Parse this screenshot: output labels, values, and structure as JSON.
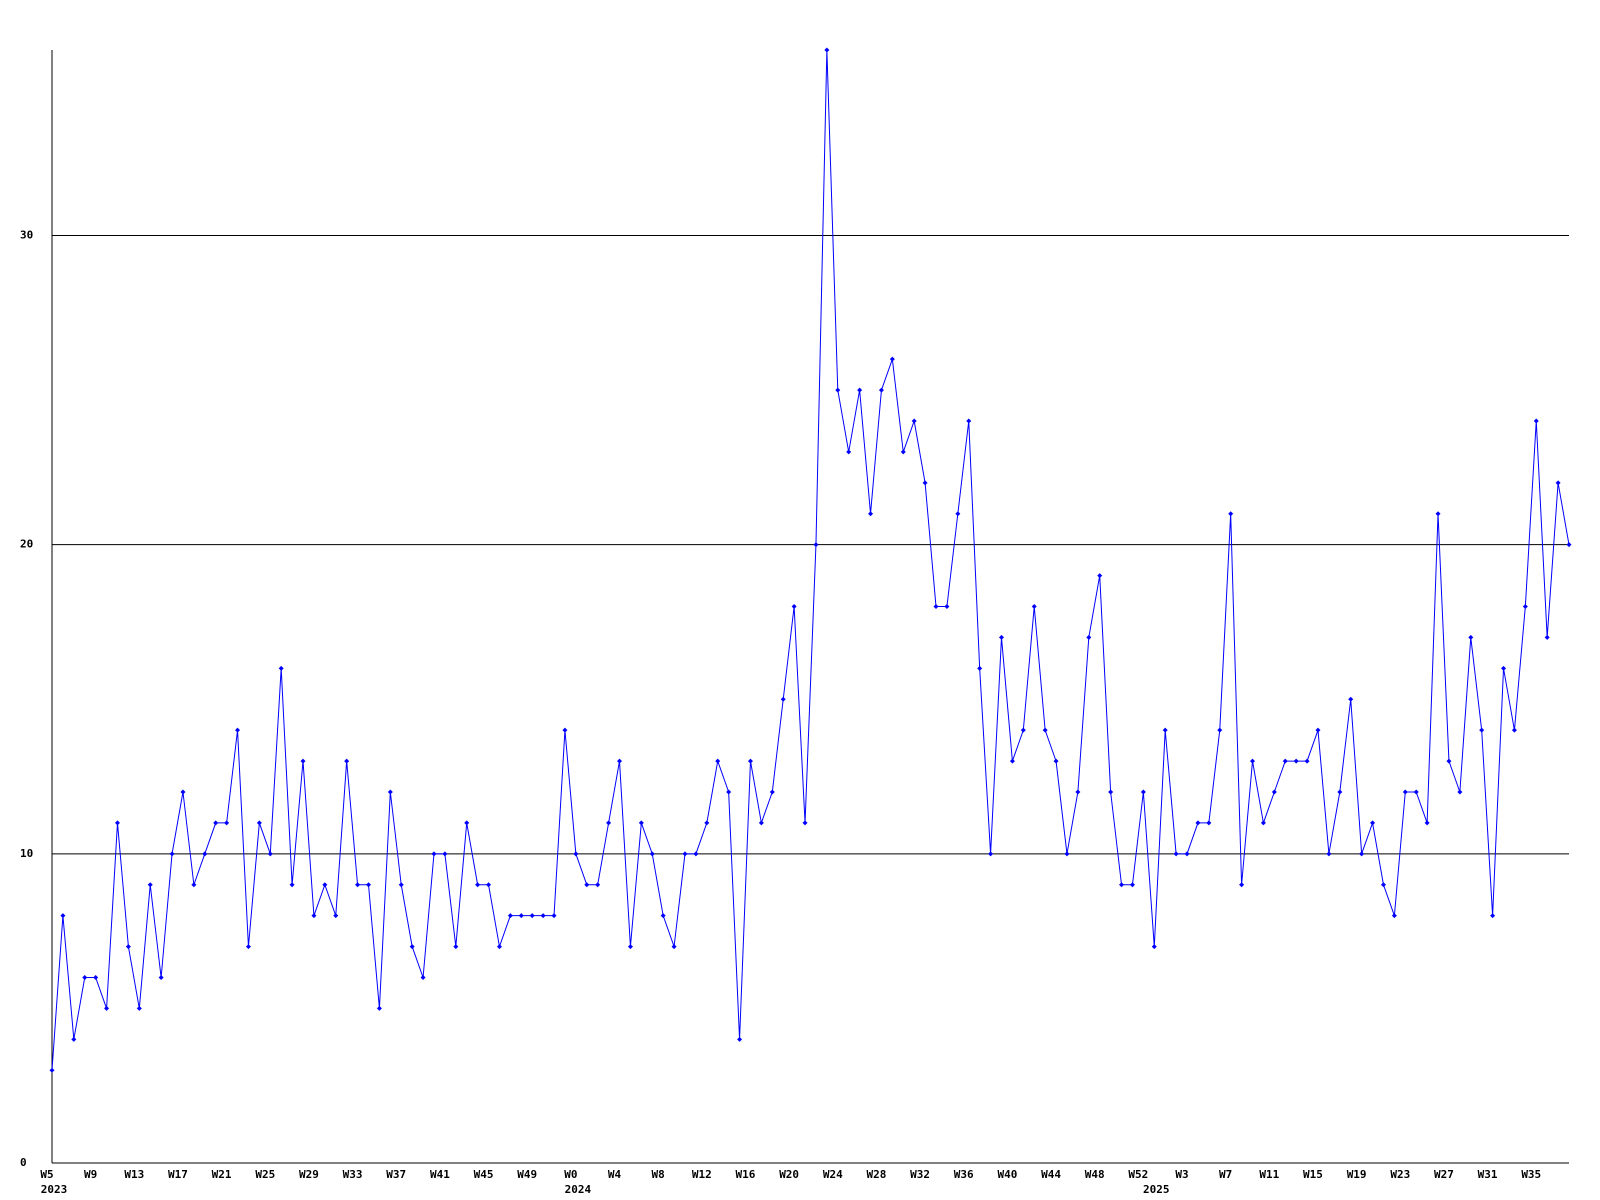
{
  "chart_data": {
    "type": "line",
    "categories": [
      "W5",
      null,
      null,
      null,
      "W9",
      null,
      null,
      null,
      "W13",
      null,
      null,
      null,
      "W17",
      null,
      null,
      null,
      "W21",
      null,
      null,
      null,
      "W25",
      null,
      null,
      null,
      "W29",
      null,
      null,
      null,
      "W33",
      null,
      null,
      null,
      "W37",
      null,
      null,
      null,
      "W41",
      null,
      null,
      null,
      "W45",
      null,
      null,
      null,
      "W49",
      null,
      null,
      null,
      "W0",
      null,
      null,
      null,
      "W4",
      null,
      null,
      null,
      "W8",
      null,
      null,
      null,
      "W12",
      null,
      null,
      null,
      "W16",
      null,
      null,
      null,
      "W20",
      null,
      null,
      null,
      "W24",
      null,
      null,
      null,
      "W28",
      null,
      null,
      null,
      "W32",
      null,
      null,
      null,
      "W36",
      null,
      null,
      null,
      "W40",
      null,
      null,
      null,
      "W44",
      null,
      null,
      null,
      "W48",
      null,
      null,
      null,
      "W52",
      null,
      null,
      null,
      "W3",
      null,
      null,
      null,
      "W7",
      null,
      null,
      null,
      "W11",
      null,
      null,
      null,
      "W15",
      null,
      null,
      null,
      "W19",
      null,
      null,
      null,
      "W23",
      null,
      null,
      null,
      "W27",
      null,
      null,
      null,
      "W31",
      null,
      null,
      null,
      "W35",
      null,
      null,
      null
    ],
    "year_labels": [
      "2023",
      null,
      null,
      null,
      null,
      null,
      null,
      null,
      null,
      null,
      null,
      null,
      null,
      null,
      null,
      null,
      null,
      null,
      null,
      null,
      null,
      null,
      null,
      null,
      null,
      null,
      null,
      null,
      null,
      null,
      null,
      null,
      null,
      null,
      null,
      null,
      null,
      null,
      null,
      null,
      null,
      null,
      null,
      null,
      null,
      null,
      null,
      null,
      "2024",
      null,
      null,
      null,
      null,
      null,
      null,
      null,
      null,
      null,
      null,
      null,
      null,
      null,
      null,
      null,
      null,
      null,
      null,
      null,
      null,
      null,
      null,
      null,
      null,
      null,
      null,
      null,
      null,
      null,
      null,
      null,
      null,
      null,
      null,
      null,
      null,
      null,
      null,
      null,
      null,
      null,
      null,
      null,
      null,
      null,
      null,
      null,
      null,
      null,
      null,
      null,
      null,
      "2025",
      null,
      null,
      null,
      null,
      null,
      null,
      null,
      null,
      null,
      null,
      null,
      null,
      null,
      null,
      null,
      null,
      null,
      null,
      null,
      null,
      null,
      null,
      null,
      null,
      null,
      null,
      null,
      null,
      null,
      null,
      null,
      null,
      null,
      null,
      null,
      null,
      null,
      null
    ],
    "values": [
      3,
      8,
      4,
      6,
      6,
      5,
      11,
      7,
      5,
      9,
      6,
      10,
      12,
      9,
      10,
      11,
      11,
      14,
      7,
      11,
      10,
      16,
      9,
      13,
      8,
      9,
      8,
      13,
      9,
      9,
      5,
      12,
      9,
      7,
      6,
      10,
      10,
      7,
      11,
      9,
      9,
      7,
      8,
      8,
      8,
      8,
      8,
      14,
      10,
      9,
      9,
      11,
      13,
      7,
      11,
      10,
      8,
      7,
      10,
      10,
      11,
      13,
      12,
      4,
      13,
      11,
      12,
      15,
      18,
      11,
      20,
      36,
      25,
      23,
      25,
      21,
      25,
      26,
      23,
      24,
      22,
      18,
      18,
      21,
      24,
      16,
      10,
      17,
      13,
      14,
      18,
      14,
      13,
      10,
      12,
      17,
      19,
      12,
      9,
      9,
      12,
      7,
      14,
      10,
      10,
      11,
      11,
      14,
      21,
      9,
      13,
      11,
      12,
      13,
      13,
      13,
      14,
      10,
      12,
      15,
      10,
      11,
      9,
      8,
      12,
      12,
      11,
      21,
      13,
      12,
      17,
      14,
      8,
      16,
      14,
      18,
      24,
      17,
      22,
      20
    ],
    "color": "#0000ff",
    "ylim": [
      0,
      36
    ],
    "yticks": [
      0,
      10,
      20,
      30
    ],
    "grid": true
  }
}
